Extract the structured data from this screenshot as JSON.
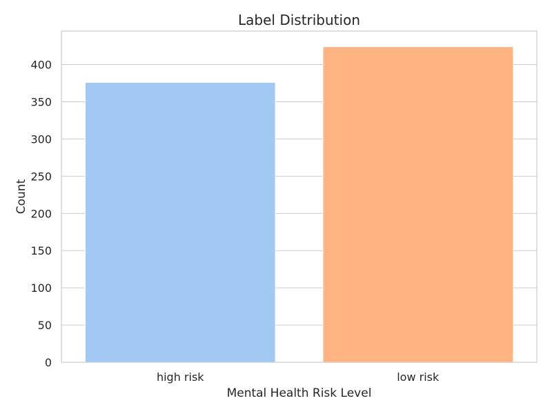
{
  "chart_data": {
    "type": "bar",
    "title": "Label Distribution",
    "xlabel": "Mental Health Risk Level",
    "ylabel": "Count",
    "categories": [
      "high risk",
      "low risk"
    ],
    "values": [
      376,
      424
    ],
    "colors": [
      "#a1c9f4",
      "#ffb482"
    ],
    "ylim": [
      0,
      445
    ],
    "yticks": [
      0,
      50,
      100,
      150,
      200,
      250,
      300,
      350,
      400
    ],
    "grid": true,
    "grid_axis": "y",
    "legend": "none"
  }
}
